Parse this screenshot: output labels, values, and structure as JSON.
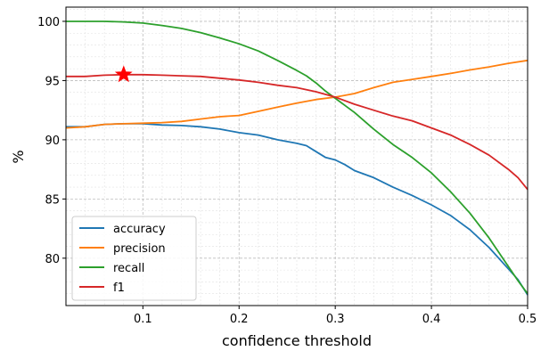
{
  "chart_data": {
    "type": "line",
    "title": "",
    "xlabel": "confidence threshold",
    "ylabel": "%",
    "xlim": [
      0.02,
      0.5
    ],
    "ylim": [
      76.0,
      101.2
    ],
    "grid": true,
    "minor_grid": true,
    "legend_position": "lower-left",
    "x_ticks": [
      0.1,
      0.2,
      0.3,
      0.4,
      0.5
    ],
    "x_tick_labels": [
      "0.1",
      "0.2",
      "0.3",
      "0.4",
      "0.5"
    ],
    "y_ticks": [
      80,
      85,
      90,
      95,
      100
    ],
    "y_tick_labels": [
      "80",
      "85",
      "90",
      "95",
      "100"
    ],
    "series": [
      {
        "name": "accuracy",
        "color": "#1f77b4",
        "points": [
          [
            0.02,
            91.1
          ],
          [
            0.04,
            91.1
          ],
          [
            0.06,
            91.3
          ],
          [
            0.08,
            91.35
          ],
          [
            0.1,
            91.35
          ],
          [
            0.12,
            91.25
          ],
          [
            0.14,
            91.2
          ],
          [
            0.16,
            91.1
          ],
          [
            0.18,
            90.9
          ],
          [
            0.2,
            90.6
          ],
          [
            0.22,
            90.4
          ],
          [
            0.24,
            90.0
          ],
          [
            0.26,
            89.7
          ],
          [
            0.27,
            89.5
          ],
          [
            0.28,
            89.0
          ],
          [
            0.29,
            88.5
          ],
          [
            0.3,
            88.3
          ],
          [
            0.31,
            87.9
          ],
          [
            0.32,
            87.4
          ],
          [
            0.34,
            86.8
          ],
          [
            0.36,
            86.0
          ],
          [
            0.38,
            85.3
          ],
          [
            0.4,
            84.5
          ],
          [
            0.42,
            83.6
          ],
          [
            0.44,
            82.4
          ],
          [
            0.46,
            80.9
          ],
          [
            0.48,
            79.1
          ],
          [
            0.49,
            78.2
          ],
          [
            0.5,
            76.9
          ]
        ]
      },
      {
        "name": "precision",
        "color": "#ff7f0e",
        "points": [
          [
            0.02,
            91.0
          ],
          [
            0.04,
            91.1
          ],
          [
            0.06,
            91.3
          ],
          [
            0.08,
            91.35
          ],
          [
            0.1,
            91.4
          ],
          [
            0.12,
            91.45
          ],
          [
            0.14,
            91.55
          ],
          [
            0.16,
            91.75
          ],
          [
            0.18,
            91.95
          ],
          [
            0.2,
            92.05
          ],
          [
            0.22,
            92.4
          ],
          [
            0.24,
            92.75
          ],
          [
            0.26,
            93.1
          ],
          [
            0.28,
            93.4
          ],
          [
            0.3,
            93.6
          ],
          [
            0.32,
            93.9
          ],
          [
            0.34,
            94.4
          ],
          [
            0.36,
            94.85
          ],
          [
            0.38,
            95.1
          ],
          [
            0.4,
            95.35
          ],
          [
            0.42,
            95.6
          ],
          [
            0.44,
            95.9
          ],
          [
            0.46,
            96.15
          ],
          [
            0.48,
            96.45
          ],
          [
            0.5,
            96.7
          ]
        ]
      },
      {
        "name": "recall",
        "color": "#2ca02c",
        "points": [
          [
            0.02,
            100.0
          ],
          [
            0.04,
            100.0
          ],
          [
            0.06,
            100.0
          ],
          [
            0.08,
            99.95
          ],
          [
            0.1,
            99.85
          ],
          [
            0.12,
            99.65
          ],
          [
            0.14,
            99.4
          ],
          [
            0.16,
            99.05
          ],
          [
            0.18,
            98.6
          ],
          [
            0.2,
            98.1
          ],
          [
            0.22,
            97.5
          ],
          [
            0.24,
            96.7
          ],
          [
            0.26,
            95.85
          ],
          [
            0.27,
            95.4
          ],
          [
            0.28,
            94.8
          ],
          [
            0.29,
            94.1
          ],
          [
            0.3,
            93.5
          ],
          [
            0.31,
            92.9
          ],
          [
            0.32,
            92.3
          ],
          [
            0.34,
            90.9
          ],
          [
            0.36,
            89.6
          ],
          [
            0.38,
            88.5
          ],
          [
            0.4,
            87.2
          ],
          [
            0.42,
            85.6
          ],
          [
            0.44,
            83.8
          ],
          [
            0.46,
            81.7
          ],
          [
            0.48,
            79.3
          ],
          [
            0.49,
            78.1
          ],
          [
            0.5,
            77.0
          ]
        ]
      },
      {
        "name": "f1",
        "color": "#d62728",
        "points": [
          [
            0.02,
            95.35
          ],
          [
            0.04,
            95.35
          ],
          [
            0.06,
            95.45
          ],
          [
            0.08,
            95.5
          ],
          [
            0.1,
            95.5
          ],
          [
            0.12,
            95.45
          ],
          [
            0.14,
            95.4
          ],
          [
            0.16,
            95.35
          ],
          [
            0.18,
            95.2
          ],
          [
            0.2,
            95.05
          ],
          [
            0.22,
            94.85
          ],
          [
            0.24,
            94.6
          ],
          [
            0.26,
            94.4
          ],
          [
            0.28,
            94.05
          ],
          [
            0.3,
            93.6
          ],
          [
            0.32,
            93.0
          ],
          [
            0.34,
            92.5
          ],
          [
            0.36,
            92.0
          ],
          [
            0.38,
            91.6
          ],
          [
            0.4,
            91.0
          ],
          [
            0.42,
            90.4
          ],
          [
            0.44,
            89.6
          ],
          [
            0.46,
            88.7
          ],
          [
            0.48,
            87.5
          ],
          [
            0.49,
            86.8
          ],
          [
            0.5,
            85.8
          ]
        ]
      }
    ],
    "markers": [
      {
        "shape": "star",
        "color": "#ff0000",
        "x": 0.08,
        "y": 95.5
      }
    ]
  }
}
